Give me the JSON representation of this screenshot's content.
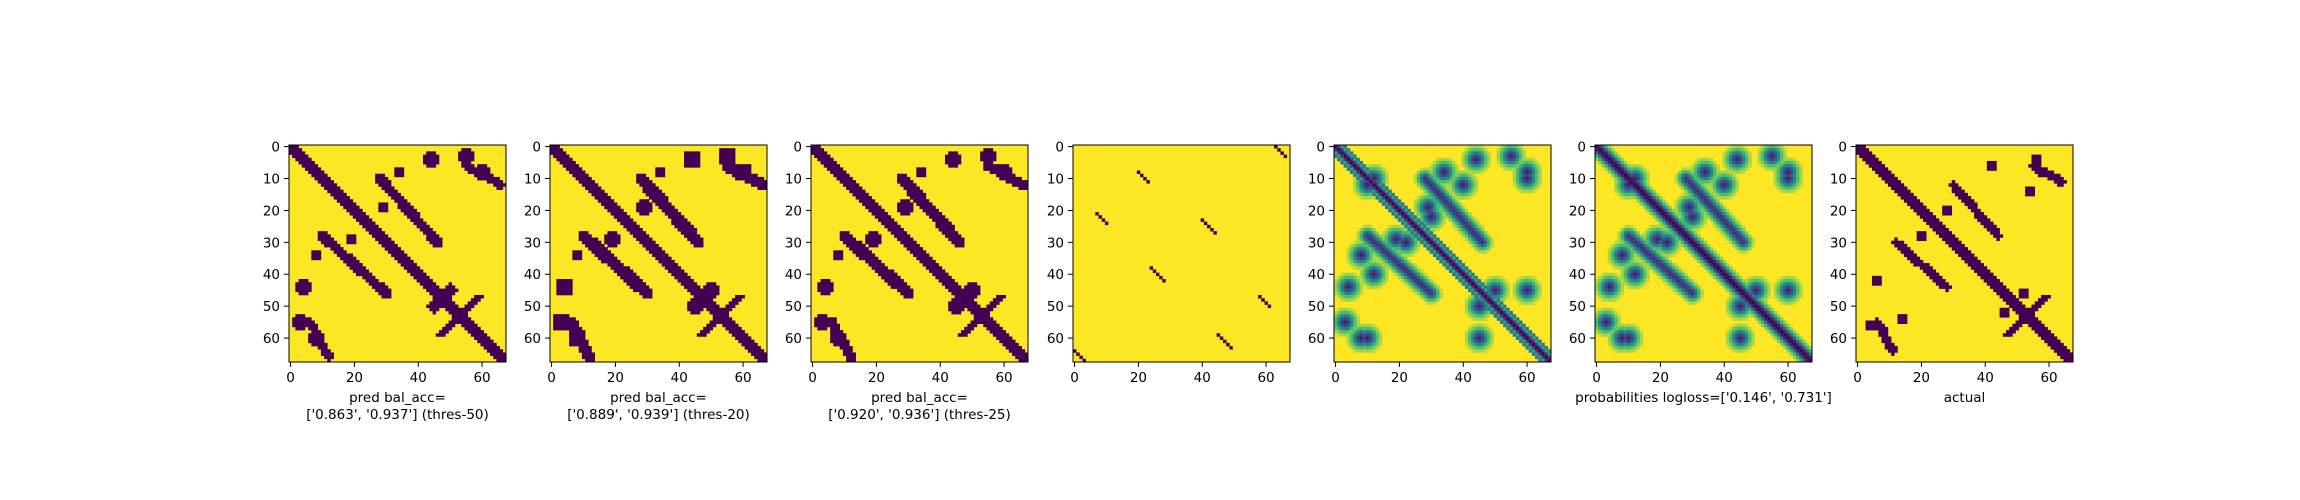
{
  "colors": {
    "background_yellow": "#fde725",
    "dark_purple": "#440154",
    "teal": "#21918c",
    "green": "#5ec962",
    "axis": "#000000"
  },
  "chart_data": [
    {
      "type": "heatmap",
      "variant": "binary",
      "size": 68,
      "xticks": [
        0,
        20,
        40,
        60
      ],
      "yticks": [
        0,
        10,
        20,
        30,
        40,
        50,
        60
      ],
      "xlabel_lines": [
        "pred bal_acc=",
        "['0.863', '0.937'] (thres-50)"
      ],
      "structure": {
        "main_diagonal_width": 2.6,
        "anti_diagonals": [
          {
            "from": [
              28,
              10
            ],
            "to": [
              46,
              30
            ],
            "width": 1.6
          },
          {
            "from": [
              6,
              55
            ],
            "to": [
              12,
              66
            ],
            "width": 1.4
          }
        ],
        "blobs": [
          [
            44,
            4,
            2.5
          ],
          [
            55,
            3,
            2.5
          ],
          [
            19,
            29,
            2
          ],
          [
            34,
            8,
            1.5
          ],
          [
            8,
            60,
            2.5
          ],
          [
            50,
            45,
            2.2
          ]
        ]
      }
    },
    {
      "type": "heatmap",
      "variant": "binary",
      "size": 68,
      "xticks": [
        0,
        20,
        40,
        60
      ],
      "yticks": [
        0,
        10,
        20,
        30,
        40,
        50,
        60
      ],
      "xlabel_lines": [
        "pred bal_acc=",
        "['0.889', '0.939'] (thres-20)"
      ],
      "structure": {
        "main_diagonal_width": 3.0,
        "anti_diagonals": [
          {
            "from": [
              28,
              10
            ],
            "to": [
              46,
              30
            ],
            "width": 2.0
          },
          {
            "from": [
              6,
              55
            ],
            "to": [
              12,
              66
            ],
            "width": 1.8
          }
        ],
        "blobs": [
          [
            44,
            4,
            3
          ],
          [
            55,
            3,
            3
          ],
          [
            19,
            29,
            2.5
          ],
          [
            34,
            8,
            2
          ],
          [
            8,
            60,
            3
          ],
          [
            50,
            45,
            2.7
          ]
        ]
      }
    },
    {
      "type": "heatmap",
      "variant": "binary",
      "size": 68,
      "xticks": [
        0,
        20,
        40,
        60
      ],
      "yticks": [
        0,
        10,
        20,
        30,
        40,
        50,
        60
      ],
      "xlabel_lines": [
        "pred bal_acc=",
        "['0.920', '0.936'] (thres-25)"
      ],
      "structure": {
        "main_diagonal_width": 2.8,
        "anti_diagonals": [
          {
            "from": [
              28,
              10
            ],
            "to": [
              46,
              30
            ],
            "width": 1.9
          },
          {
            "from": [
              6,
              55
            ],
            "to": [
              12,
              66
            ],
            "width": 1.6
          }
        ],
        "blobs": [
          [
            44,
            4,
            2.8
          ],
          [
            55,
            3,
            2.8
          ],
          [
            19,
            29,
            2.3
          ],
          [
            34,
            8,
            1.8
          ],
          [
            8,
            60,
            2.8
          ],
          [
            50,
            45,
            2.5
          ]
        ]
      }
    },
    {
      "type": "heatmap",
      "variant": "sparse",
      "size": 68,
      "xticks": [
        0,
        20,
        40,
        60
      ],
      "yticks": [
        0,
        10,
        20,
        30,
        40,
        50,
        60
      ],
      "xlabel_lines": [],
      "structure": {
        "short_diagonals": [
          {
            "from": [
              63,
              0
            ],
            "to": [
              66,
              3
            ]
          },
          {
            "from": [
              20,
              8
            ],
            "to": [
              23,
              11
            ]
          },
          {
            "from": [
              7,
              21
            ],
            "to": [
              10,
              24
            ]
          },
          {
            "from": [
              40,
              23
            ],
            "to": [
              44,
              27
            ]
          },
          {
            "from": [
              24,
              38
            ],
            "to": [
              28,
              42
            ]
          },
          {
            "from": [
              58,
              47
            ],
            "to": [
              61,
              50
            ]
          },
          {
            "from": [
              45,
              59
            ],
            "to": [
              49,
              63
            ]
          },
          {
            "from": [
              0,
              64
            ],
            "to": [
              3,
              67
            ]
          }
        ]
      }
    },
    {
      "type": "heatmap",
      "variant": "continuous",
      "size": 68,
      "xticks": [
        0,
        20,
        40,
        60
      ],
      "yticks": [
        0,
        10,
        20,
        30,
        40,
        50,
        60
      ],
      "xlabel_lines": []
    },
    {
      "type": "heatmap",
      "variant": "probability",
      "size": 68,
      "xticks": [
        0,
        20,
        40,
        60
      ],
      "yticks": [
        0,
        10,
        20,
        30,
        40,
        50,
        60
      ],
      "xlabel_lines": [
        "probabilities logloss=['0.146', '0.731']"
      ]
    },
    {
      "type": "heatmap",
      "variant": "actual",
      "size": 68,
      "xticks": [
        0,
        20,
        40,
        60
      ],
      "yticks": [
        0,
        10,
        20,
        30,
        40,
        50,
        60
      ],
      "xlabel_lines": [
        "actual"
      ]
    }
  ]
}
